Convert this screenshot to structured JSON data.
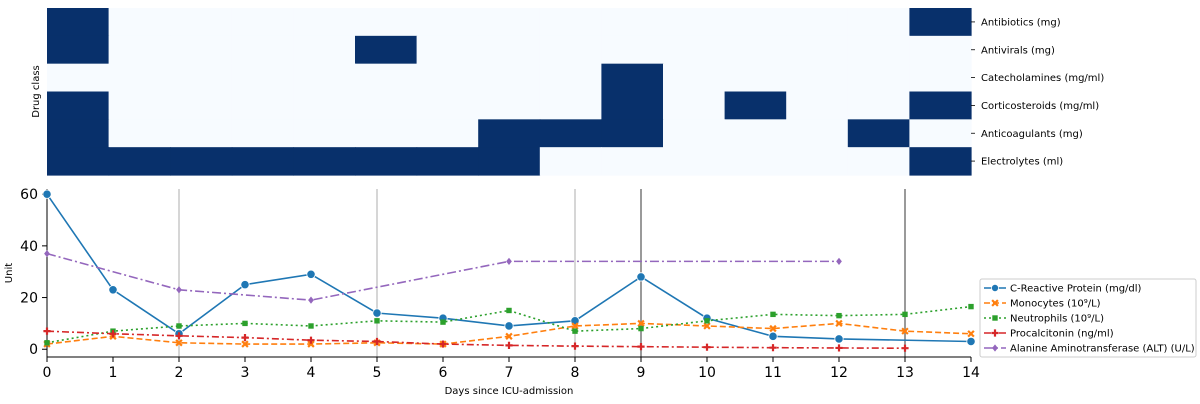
{
  "chart_data": [
    {
      "type": "heatmap",
      "ylabel": "Drug class",
      "rows": [
        "Antibiotics (mg)",
        "Antivirals (mg)",
        "Catecholamines (mg/ml)",
        "Corticosteroids (mg/ml)",
        "Anticoagulants (mg)",
        "Electrolytes (ml)"
      ],
      "days": [
        0,
        1,
        2,
        3,
        4,
        5,
        6,
        7,
        8,
        9,
        10,
        11,
        12,
        13,
        14
      ],
      "matrix": [
        [
          1,
          0,
          0,
          0,
          0,
          0,
          0,
          0,
          0,
          0,
          0,
          0,
          0,
          0,
          1
        ],
        [
          1,
          0,
          0,
          0,
          0,
          1,
          0,
          0,
          0,
          0,
          0,
          0,
          0,
          0,
          0
        ],
        [
          0,
          0,
          0,
          0,
          0,
          0,
          0,
          0,
          0,
          1,
          0,
          0,
          0,
          0,
          0
        ],
        [
          1,
          0,
          0,
          0,
          0,
          0,
          0,
          0,
          0,
          1,
          0,
          1,
          0,
          0,
          1
        ],
        [
          1,
          0,
          0,
          0,
          0,
          0,
          0,
          1,
          1,
          1,
          0,
          0,
          0,
          1,
          0
        ],
        [
          1,
          1,
          1,
          1,
          1,
          1,
          1,
          1,
          0,
          0,
          0,
          0,
          0,
          0,
          1
        ]
      ],
      "colors": {
        "on": "#08306b",
        "off": "#f7fbff"
      }
    },
    {
      "type": "line",
      "xlabel": "Days since ICU-admission",
      "ylabel": "Unit",
      "xlim": [
        0,
        14
      ],
      "ylim": [
        -3,
        62
      ],
      "xticks": [
        0,
        1,
        2,
        3,
        4,
        5,
        6,
        7,
        8,
        9,
        10,
        11,
        12,
        13,
        14
      ],
      "yticks": [
        0,
        20,
        40,
        60
      ],
      "vlines": [
        {
          "x": 2,
          "color": "#cccccc"
        },
        {
          "x": 5,
          "color": "#cccccc"
        },
        {
          "x": 8,
          "color": "#cccccc"
        },
        {
          "x": 9,
          "color": "#808080"
        },
        {
          "x": 13,
          "color": "#808080"
        }
      ],
      "legend_position": "right",
      "series": [
        {
          "name": "C-Reactive Protein (mg/dl)",
          "color": "#1f77b4",
          "dash": "",
          "marker": "circle",
          "x": [
            0,
            1,
            2,
            3,
            4,
            5,
            6,
            7,
            8,
            9,
            10,
            11,
            12,
            14
          ],
          "y": [
            60,
            23,
            6,
            25,
            29,
            14,
            12,
            9,
            11,
            28,
            12,
            5,
            4,
            3
          ]
        },
        {
          "name": "Monocytes (10⁹/L)",
          "color": "#ff7f0e",
          "dash": "6,3",
          "marker": "x",
          "x": [
            0,
            1,
            2,
            3,
            4,
            5,
            6,
            7,
            8,
            9,
            10,
            11,
            12,
            13,
            14
          ],
          "y": [
            2,
            5,
            2.5,
            2,
            2,
            2.5,
            2,
            5,
            9,
            10,
            9,
            8,
            10,
            7,
            6
          ]
        },
        {
          "name": "Neutrophils (10⁹/L)",
          "color": "#2ca02c",
          "dash": "2,3",
          "marker": "square",
          "x": [
            0,
            1,
            2,
            3,
            4,
            5,
            6,
            7,
            8,
            9,
            10,
            11,
            12,
            13,
            14
          ],
          "y": [
            2.5,
            7,
            9,
            10,
            9,
            11,
            10.5,
            15,
            7,
            8,
            11,
            13.5,
            13,
            13.5,
            16.5
          ]
        },
        {
          "name": "Procalcitonin (ng/ml)",
          "color": "#d62728",
          "dash": "7,3,2,3",
          "marker": "plus",
          "x": [
            0,
            1,
            2,
            3,
            4,
            5,
            6,
            7,
            8,
            9,
            10,
            11,
            12,
            13
          ],
          "y": [
            7,
            6,
            5.2,
            4.5,
            3.5,
            3,
            2,
            1.5,
            1.2,
            1,
            0.8,
            0.6,
            0.5,
            0.4
          ]
        },
        {
          "name": "Alanine Aminotransferase (ALT) (U/L)",
          "color": "#9467bd",
          "dash": "9,3,2,3",
          "marker": "diamond",
          "x": [
            0,
            2,
            4,
            7,
            12
          ],
          "y": [
            37,
            23,
            19,
            34,
            34
          ]
        }
      ]
    }
  ]
}
